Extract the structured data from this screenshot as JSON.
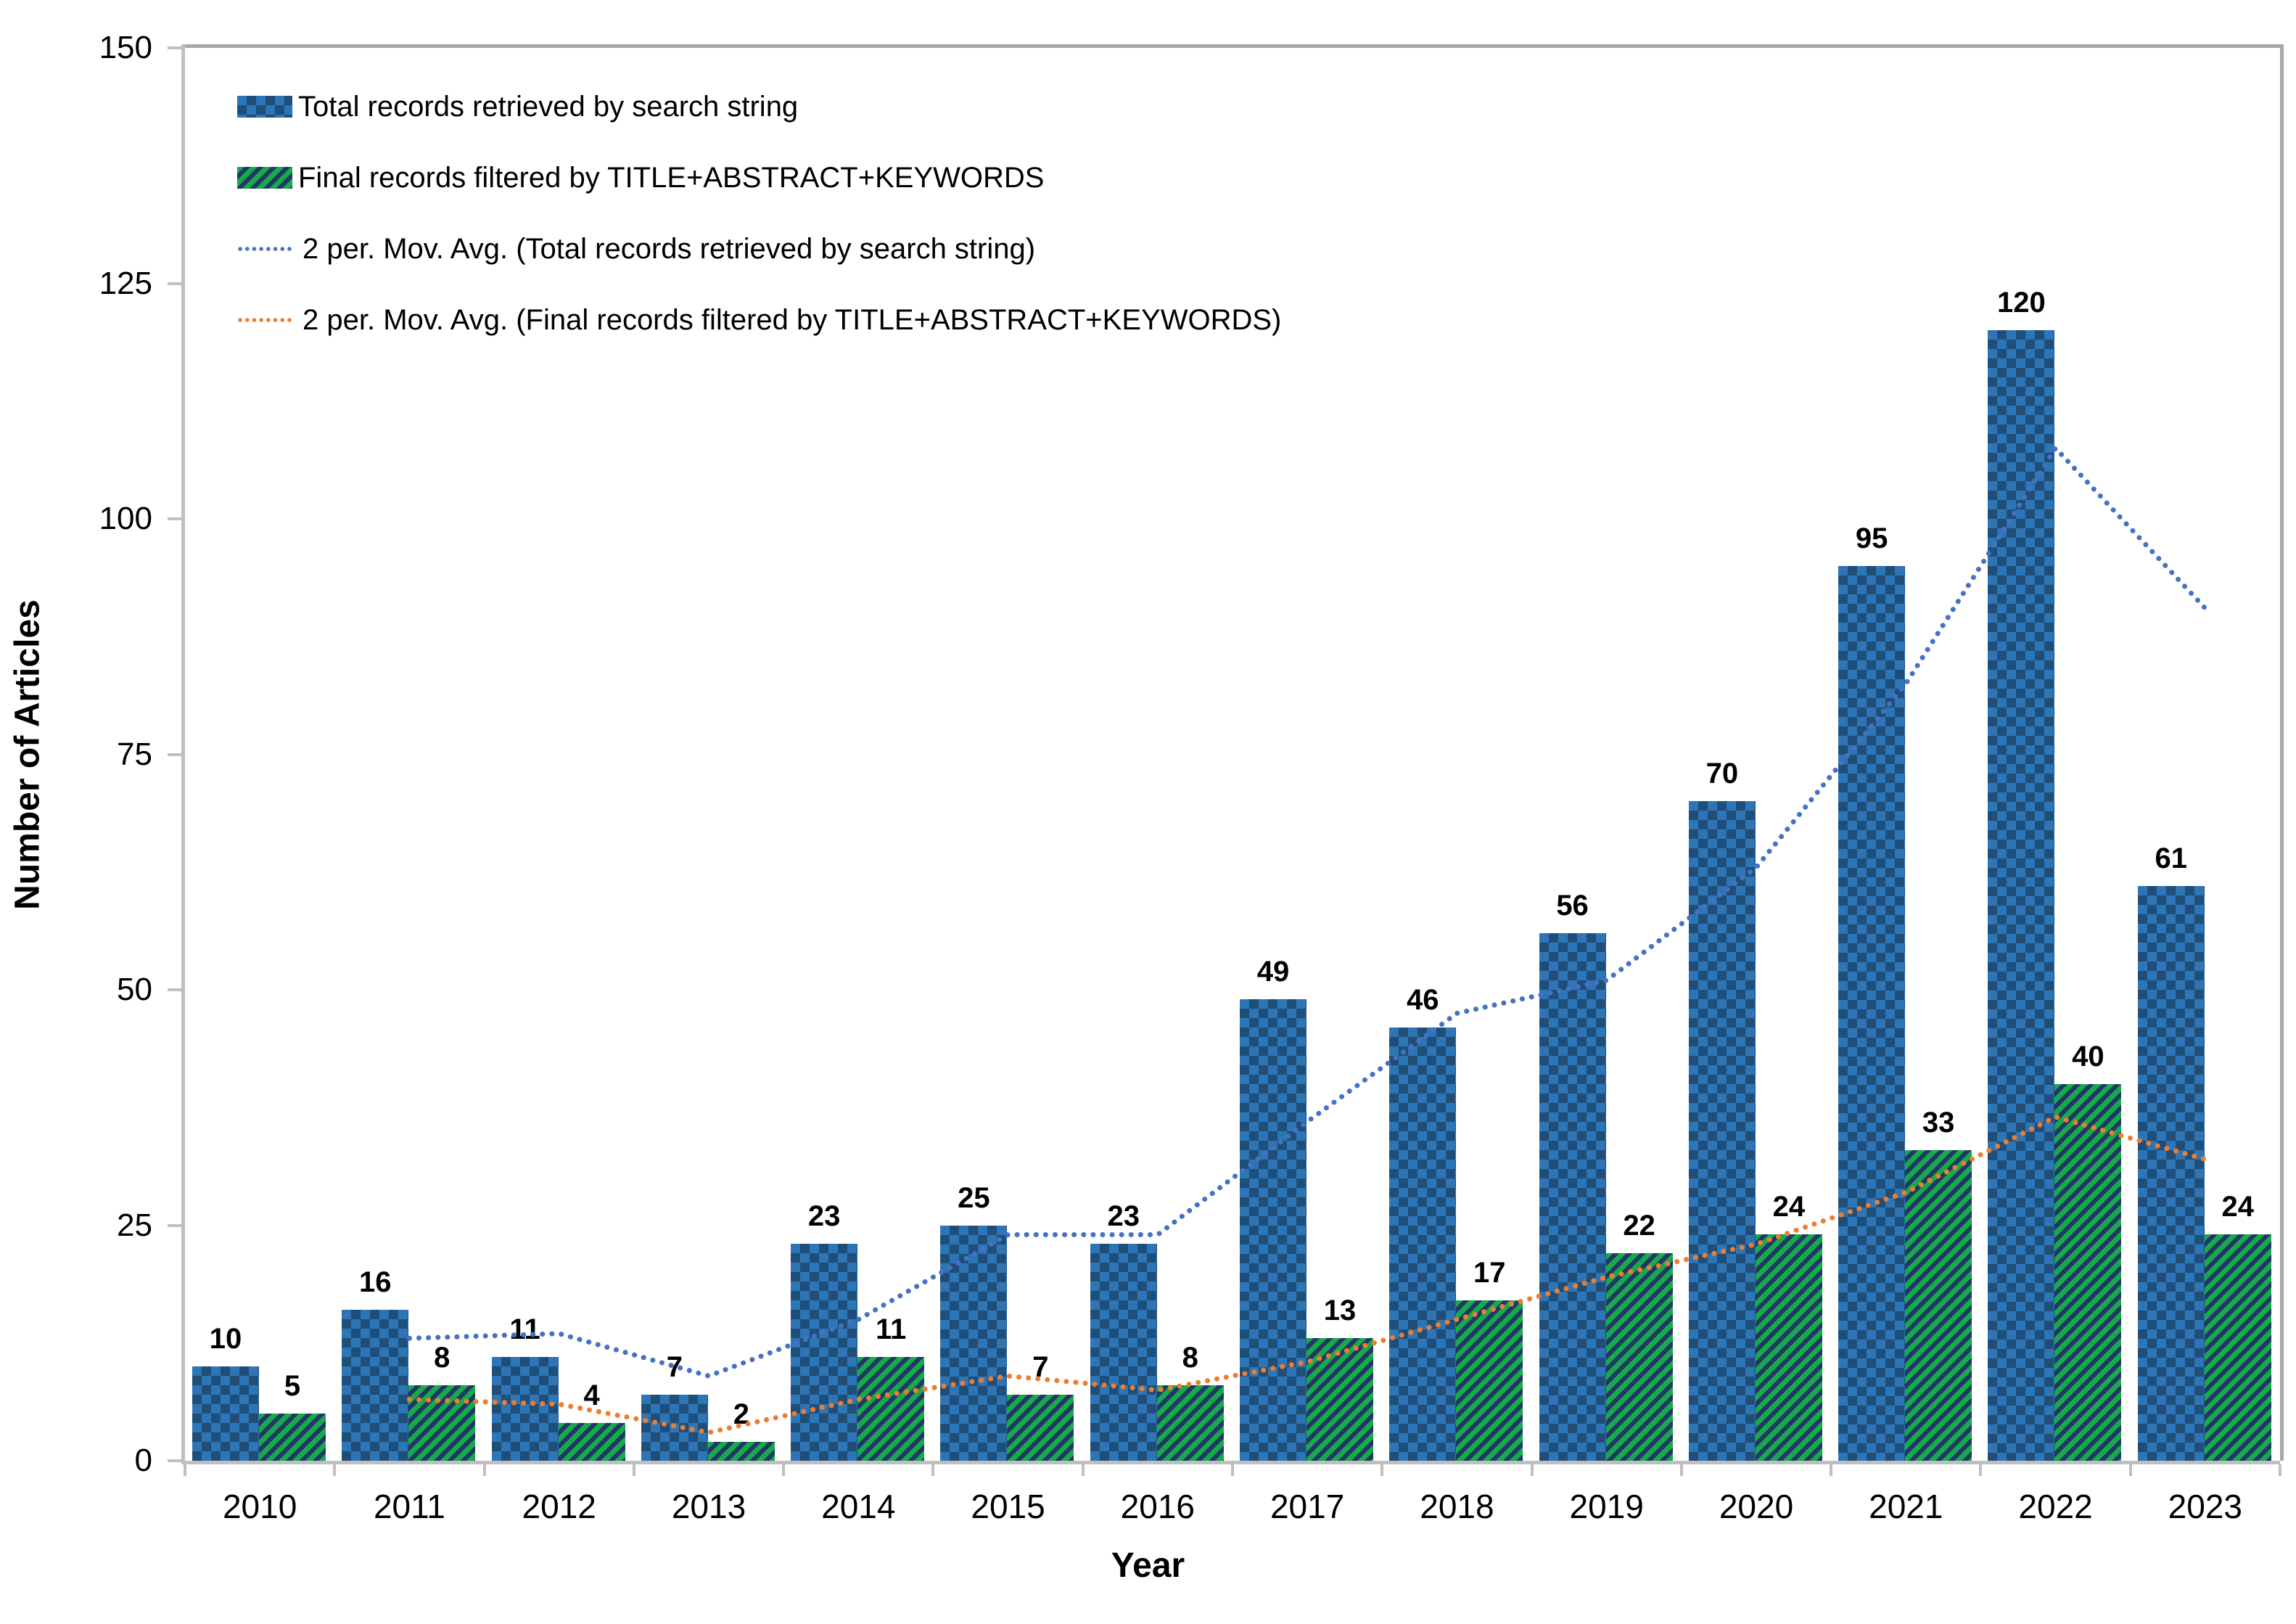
{
  "chart_data": {
    "type": "bar",
    "title": "",
    "xlabel": "Year",
    "ylabel": "Number of Articles",
    "categories": [
      "2010",
      "2011",
      "2012",
      "2013",
      "2014",
      "2015",
      "2016",
      "2017",
      "2018",
      "2019",
      "2020",
      "2021",
      "2022",
      "2023"
    ],
    "series": [
      {
        "name": "Total records retrieved by search string",
        "style": "blue-checker",
        "values": [
          10,
          16,
          11,
          7,
          23,
          25,
          23,
          49,
          46,
          56,
          70,
          95,
          120,
          61
        ]
      },
      {
        "name": "Final records filtered by TITLE+ABSTRACT+KEYWORDS",
        "style": "green-stripe",
        "values": [
          5,
          8,
          4,
          2,
          11,
          7,
          8,
          13,
          17,
          22,
          24,
          33,
          40,
          24
        ]
      }
    ],
    "trendlines": [
      {
        "name": "2 per. Mov. Avg. (Total records retrieved by search string)",
        "period": 2,
        "color": "#4472C4",
        "start_category_index": 1,
        "values": [
          13,
          13.5,
          9,
          15,
          24,
          24,
          36,
          47.5,
          51,
          63,
          82.5,
          107.5,
          90.5
        ]
      },
      {
        "name": "2 per. Mov. Avg. (Final records filtered by TITLE+ABSTRACT+KEYWORDS)",
        "period": 2,
        "color": "#ED7D31",
        "start_category_index": 1,
        "values": [
          6.5,
          6,
          3,
          6.5,
          9,
          7.5,
          10.5,
          15,
          19.5,
          23,
          28.5,
          36.5,
          32
        ]
      }
    ],
    "ylim": [
      0,
      150
    ],
    "yticks": [
      0,
      25,
      50,
      75,
      100,
      125,
      150
    ],
    "grid": false,
    "legend_position": "top-left-inside",
    "show_value_labels": true,
    "colors": {
      "bar1_fill": "#2E75B6",
      "bar1_pattern": "#1F4E79",
      "bar2_fill": "#18A94D",
      "bar2_pattern": "#1F3864",
      "trend1": "#4472C4",
      "trend2": "#ED7D31",
      "axis": "#BFBFBF",
      "plot_border": "#A8A8A8",
      "text": "#000000"
    }
  }
}
